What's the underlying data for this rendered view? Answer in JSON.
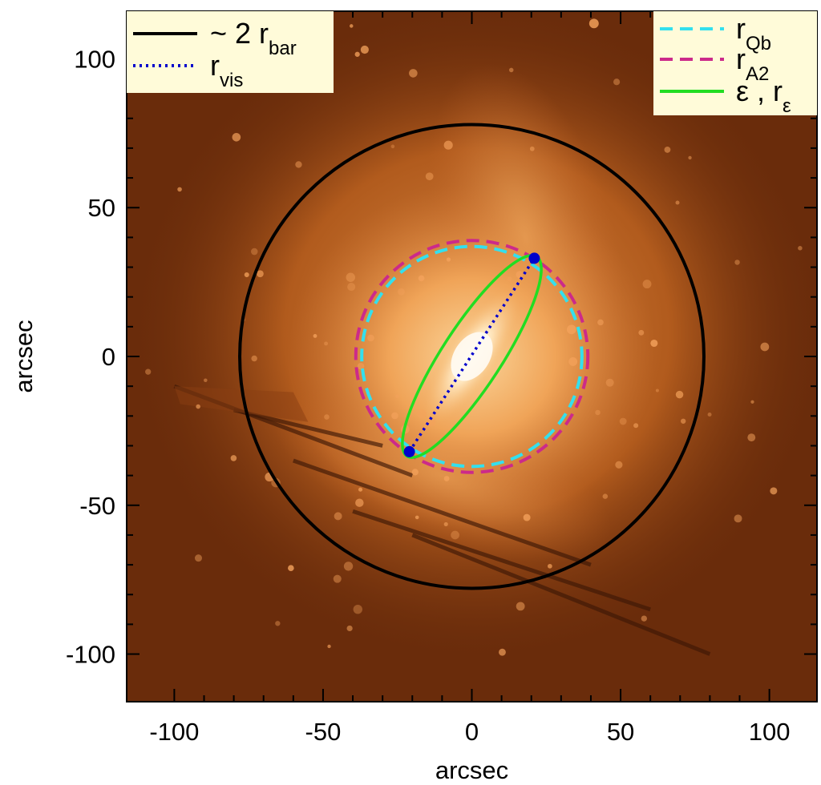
{
  "chart_data": {
    "type": "image",
    "xlabel": "arcsec",
    "ylabel": "arcsec",
    "xlim": [
      -116,
      116
    ],
    "ylim": [
      -116,
      116
    ],
    "x_ticks": [
      "-100",
      "-50",
      "0",
      "50",
      "100"
    ],
    "y_ticks": [
      "100",
      "50",
      "0",
      "-50",
      "-100"
    ],
    "legend_left": {
      "placement": "top-left",
      "entries": [
        {
          "prefix": "~ 2 r",
          "sub": "bar",
          "style": "solid",
          "color": "#000000"
        },
        {
          "prefix": "r",
          "sub": "vis",
          "style": "dotted",
          "color": "#0000cc"
        }
      ]
    },
    "legend_right": {
      "placement": "top-right",
      "entries": [
        {
          "prefix": "r",
          "sub": "Qb",
          "style": "dashed",
          "color": "#33e0ee"
        },
        {
          "prefix": "r",
          "sub": "A2",
          "style": "dashed",
          "color": "#cc2a8a"
        },
        {
          "prefix": "ε , r",
          "sub": "ε",
          "style": "solid",
          "color": "#22dd22"
        }
      ]
    },
    "overlays": {
      "two_r_bar": {
        "center": [
          0,
          0
        ],
        "radius": 78,
        "color": "#000000"
      },
      "r_Qb": {
        "center": [
          0,
          0
        ],
        "radius": 37,
        "color": "#33e0ee"
      },
      "r_A2": {
        "center": [
          0,
          0
        ],
        "radius": 39,
        "color": "#cc2a8a"
      },
      "r_vis_segment": {
        "from": [
          -21,
          -32
        ],
        "to": [
          21,
          33
        ],
        "color": "#0000cc"
      },
      "ellipse": {
        "center": [
          0,
          0
        ],
        "semi_major": 40,
        "semi_minor": 10,
        "pa_deg_from_x": 57,
        "color": "#22dd22"
      }
    },
    "colors": {
      "background": "#6a2c0b",
      "glow_core": "#fff4d8",
      "glow_mid": "#f0a458",
      "glow_outer": "#c8682a"
    }
  }
}
